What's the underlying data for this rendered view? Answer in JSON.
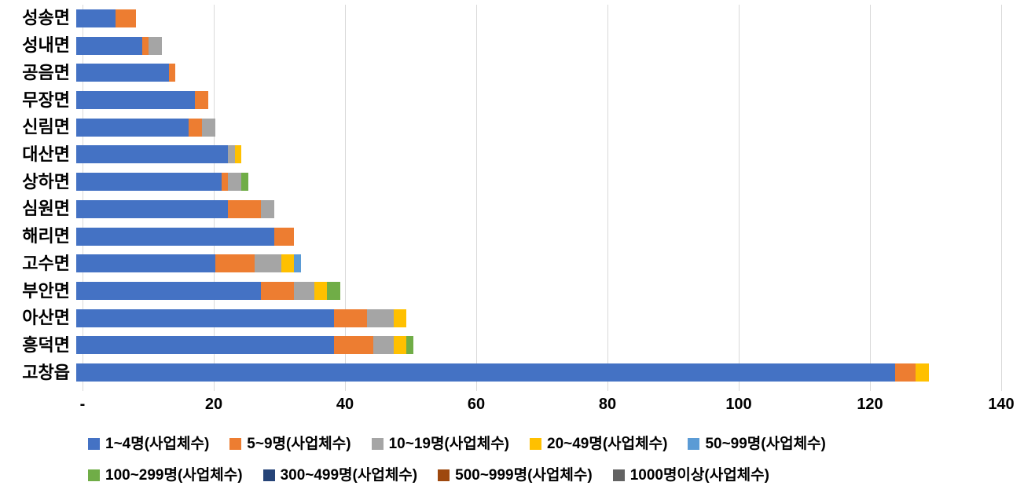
{
  "chart_data": {
    "type": "bar",
    "orientation": "horizontal",
    "stacked": true,
    "title": "",
    "xlabel": "",
    "ylabel": "",
    "grid": true,
    "legend_position": "bottom",
    "categories": [
      "성송면",
      "성내면",
      "공음면",
      "무장면",
      "신림면",
      "대산면",
      "상하면",
      "심원면",
      "해리면",
      "고수면",
      "부안면",
      "아산면",
      "흥덕면",
      "고창읍"
    ],
    "series": [
      {
        "name": "1~4명(사업체수)",
        "color": "#4472C4",
        "values": [
          6,
          10,
          14,
          18,
          17,
          23,
          22,
          23,
          30,
          21,
          28,
          39,
          39,
          124
        ]
      },
      {
        "name": "5~9명(사업체수)",
        "color": "#ED7D31",
        "values": [
          3,
          1,
          1,
          2,
          2,
          0,
          1,
          5,
          3,
          6,
          5,
          5,
          6,
          3
        ]
      },
      {
        "name": "10~19명(사업체수)",
        "color": "#A5A5A5",
        "values": [
          0,
          2,
          0,
          0,
          2,
          1,
          2,
          2,
          0,
          4,
          3,
          4,
          3,
          0
        ]
      },
      {
        "name": "20~49명(사업체수)",
        "color": "#FFC000",
        "values": [
          0,
          0,
          0,
          0,
          0,
          1,
          0,
          0,
          0,
          2,
          2,
          2,
          2,
          2
        ]
      },
      {
        "name": "50~99명(사업체수)",
        "color": "#5B9BD5",
        "values": [
          0,
          0,
          0,
          0,
          0,
          0,
          0,
          0,
          0,
          1,
          0,
          0,
          0,
          0
        ]
      },
      {
        "name": "100~299명(사업체수)",
        "color": "#70AD47",
        "values": [
          0,
          0,
          0,
          0,
          0,
          0,
          1,
          0,
          0,
          0,
          2,
          0,
          1,
          0
        ]
      },
      {
        "name": "300~499명(사업체수)",
        "color": "#264478",
        "values": [
          0,
          0,
          0,
          0,
          0,
          0,
          0,
          0,
          0,
          0,
          0,
          0,
          0,
          0
        ]
      },
      {
        "name": "500~999명(사업체수)",
        "color": "#9E480E",
        "values": [
          0,
          0,
          0,
          0,
          0,
          0,
          0,
          0,
          0,
          0,
          0,
          0,
          0,
          0
        ]
      },
      {
        "name": "1000명이상(사업체수)",
        "color": "#636363",
        "values": [
          0,
          0,
          0,
          0,
          0,
          0,
          0,
          0,
          0,
          0,
          0,
          0,
          0,
          0
        ]
      }
    ],
    "x_axis": {
      "min": 0,
      "max": 140,
      "tick_step": 20,
      "tick_labels": [
        "-",
        "20",
        "40",
        "60",
        "80",
        "100",
        "120",
        "140"
      ]
    },
    "legend_rows": [
      [
        0,
        1,
        2,
        3,
        4
      ],
      [
        5,
        6,
        7,
        8
      ]
    ],
    "gridline_color": "#D9D9D9"
  }
}
